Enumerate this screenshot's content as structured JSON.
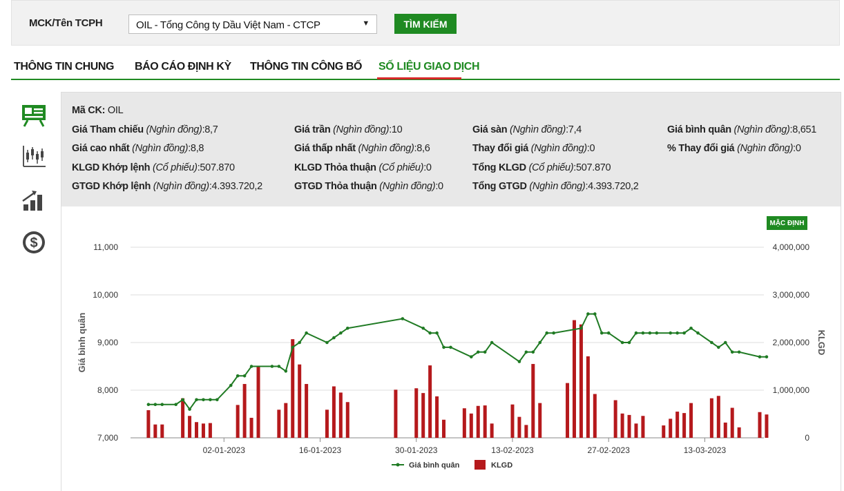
{
  "search": {
    "label": "MCK/Tên TCPH",
    "selected": "OIL - Tổng Công ty Dầu Việt Nam - CTCP",
    "button": "TÌM KIẾM"
  },
  "tabs": [
    "THÔNG TIN CHUNG",
    "BÁO CÁO ĐỊNH KỲ",
    "THÔNG TIN CÔNG BỐ",
    "SỐ LIỆU GIAO DỊCH"
  ],
  "active_tab": "SỐ LIỆU GIAO DỊCH",
  "side_icons": [
    "presentation-board-icon",
    "candlestick-chart-icon",
    "bar-growth-chart-icon",
    "dollar-circle-icon"
  ],
  "info": {
    "symbol": {
      "k": "Mã CK:",
      "v": " OIL"
    },
    "ref": {
      "k": "Giá Tham chiếu",
      "u": "(Nghìn đồng)",
      "v": ":8,7"
    },
    "ceil": {
      "k": "Giá trần",
      "u": "(Nghìn đồng)",
      "v": ":10"
    },
    "floor": {
      "k": "Giá sàn",
      "u": "(Nghìn đồng)",
      "v": ":7,4"
    },
    "avg": {
      "k": "Giá bình quân",
      "u": "(Nghìn đồng)",
      "v": ":8,651"
    },
    "high": {
      "k": "Giá cao nhất",
      "u": "(Nghìn đồng)",
      "v": ":8,8"
    },
    "low": {
      "k": "Giá thấp nhất",
      "u": "(Nghìn đồng)",
      "v": ":8,6"
    },
    "chg": {
      "k": "Thay đổi giá",
      "u": "(Nghìn đồng)",
      "v": ":0"
    },
    "chgpct": {
      "k": "% Thay đổi giá",
      "u": "(Nghìn đồng)",
      "v": ":0"
    },
    "klgd_kl": {
      "k": "KLGD Khớp lệnh",
      "u": "(Cổ phiếu)",
      "v": ":507.870"
    },
    "klgd_tt": {
      "k": "KLGD Thỏa thuận",
      "u": "(Cổ phiếu)",
      "v": ":0"
    },
    "klgd_total": {
      "k": "Tổng KLGD",
      "u": "(Cổ phiếu)",
      "v": ":507.870"
    },
    "gtgd_kl": {
      "k": "GTGD Khớp lệnh",
      "u": "(Nghìn đồng)",
      "v": ":4.393.720,2"
    },
    "gtgd_tt": {
      "k": "GTGD Thỏa thuận",
      "u": "(Nghìn đồng)",
      "v": ":0"
    },
    "gtgd_total": {
      "k": "Tổng GTGD",
      "u": "(Nghìn đồng)",
      "v": ":4.393.720,2"
    }
  },
  "default_button": "MẶC ĐỊNH",
  "colors": {
    "accent": "#1f8a22",
    "tab_underline": "#d62828",
    "bar": "#b5191c",
    "line": "#1f7a23"
  },
  "chart_data": {
    "type": "bar+line",
    "x_ticks": [
      "02-01-2023",
      "16-01-2023",
      "30-01-2023",
      "13-02-2023",
      "27-02-2023",
      "13-03-2023"
    ],
    "x_tick_days": [
      13,
      27,
      41,
      55,
      69,
      83
    ],
    "xlim_days": [
      0,
      91
    ],
    "ylabel_left": "Giá bình quân",
    "ylabel_right": "KLGD",
    "yleft_ticks": [
      "11,000",
      "10,000",
      "9,000",
      "8,000",
      "7,000"
    ],
    "yleft_lim": [
      7000,
      11000
    ],
    "yright_ticks": [
      "4,000,000",
      "3,000,000",
      "2,000,000",
      "1,000,000",
      "0"
    ],
    "yright_lim": [
      0,
      4000000
    ],
    "grid": true,
    "legend_position": "bottom",
    "series": [
      {
        "name": "Giá bình quân",
        "type": "line",
        "points": [
          [
            2,
            7700
          ],
          [
            3,
            7700
          ],
          [
            4,
            7700
          ],
          [
            6,
            7700
          ],
          [
            7,
            7800
          ],
          [
            8,
            7600
          ],
          [
            9,
            7800
          ],
          [
            10,
            7800
          ],
          [
            11,
            7800
          ],
          [
            12,
            7800
          ],
          [
            14,
            8100
          ],
          [
            15,
            8300
          ],
          [
            16,
            8300
          ],
          [
            17,
            8500
          ],
          [
            20,
            8500
          ],
          [
            21,
            8500
          ],
          [
            22,
            8400
          ],
          [
            23,
            8900
          ],
          [
            24,
            9000
          ],
          [
            25,
            9200
          ],
          [
            28,
            9000
          ],
          [
            29,
            9100
          ],
          [
            30,
            9200
          ],
          [
            31,
            9300
          ],
          [
            39,
            9500
          ],
          [
            42,
            9300
          ],
          [
            43,
            9200
          ],
          [
            44,
            9200
          ],
          [
            45,
            8900
          ],
          [
            46,
            8900
          ],
          [
            49,
            8700
          ],
          [
            50,
            8800
          ],
          [
            51,
            8800
          ],
          [
            52,
            9000
          ],
          [
            56,
            8600
          ],
          [
            57,
            8800
          ],
          [
            58,
            8800
          ],
          [
            59,
            9000
          ],
          [
            60,
            9200
          ],
          [
            61,
            9200
          ],
          [
            65,
            9300
          ],
          [
            66,
            9600
          ],
          [
            67,
            9600
          ],
          [
            68,
            9200
          ],
          [
            69,
            9200
          ],
          [
            71,
            9000
          ],
          [
            72,
            9000
          ],
          [
            73,
            9200
          ],
          [
            74,
            9200
          ],
          [
            75,
            9200
          ],
          [
            76,
            9200
          ],
          [
            78,
            9200
          ],
          [
            79,
            9200
          ],
          [
            80,
            9200
          ],
          [
            81,
            9300
          ],
          [
            82,
            9200
          ],
          [
            84,
            9000
          ],
          [
            85,
            8900
          ],
          [
            86,
            9000
          ],
          [
            87,
            8800
          ],
          [
            88,
            8800
          ],
          [
            91,
            8700
          ],
          [
            92,
            8700
          ]
        ]
      },
      {
        "name": "KLGD",
        "type": "bar",
        "points": [
          [
            2,
            580000
          ],
          [
            3,
            280000
          ],
          [
            4,
            280000
          ],
          [
            7,
            830000
          ],
          [
            8,
            460000
          ],
          [
            9,
            330000
          ],
          [
            10,
            300000
          ],
          [
            11,
            310000
          ],
          [
            15,
            690000
          ],
          [
            16,
            1130000
          ],
          [
            17,
            420000
          ],
          [
            18,
            1500000
          ],
          [
            21,
            590000
          ],
          [
            22,
            730000
          ],
          [
            23,
            2070000
          ],
          [
            24,
            1540000
          ],
          [
            25,
            1130000
          ],
          [
            28,
            590000
          ],
          [
            29,
            1080000
          ],
          [
            30,
            950000
          ],
          [
            31,
            750000
          ],
          [
            38,
            1010000
          ],
          [
            41,
            1040000
          ],
          [
            42,
            940000
          ],
          [
            43,
            1520000
          ],
          [
            44,
            870000
          ],
          [
            45,
            380000
          ],
          [
            48,
            620000
          ],
          [
            49,
            510000
          ],
          [
            50,
            670000
          ],
          [
            51,
            680000
          ],
          [
            52,
            300000
          ],
          [
            55,
            700000
          ],
          [
            56,
            440000
          ],
          [
            57,
            270000
          ],
          [
            58,
            1550000
          ],
          [
            59,
            730000
          ],
          [
            63,
            1150000
          ],
          [
            64,
            2470000
          ],
          [
            65,
            2380000
          ],
          [
            66,
            1710000
          ],
          [
            67,
            920000
          ],
          [
            70,
            790000
          ],
          [
            71,
            510000
          ],
          [
            72,
            480000
          ],
          [
            73,
            300000
          ],
          [
            74,
            460000
          ],
          [
            77,
            260000
          ],
          [
            78,
            400000
          ],
          [
            79,
            550000
          ],
          [
            80,
            520000
          ],
          [
            81,
            730000
          ],
          [
            84,
            830000
          ],
          [
            85,
            880000
          ],
          [
            86,
            320000
          ],
          [
            87,
            630000
          ],
          [
            88,
            220000
          ],
          [
            91,
            540000
          ],
          [
            92,
            490000
          ]
        ]
      }
    ]
  }
}
